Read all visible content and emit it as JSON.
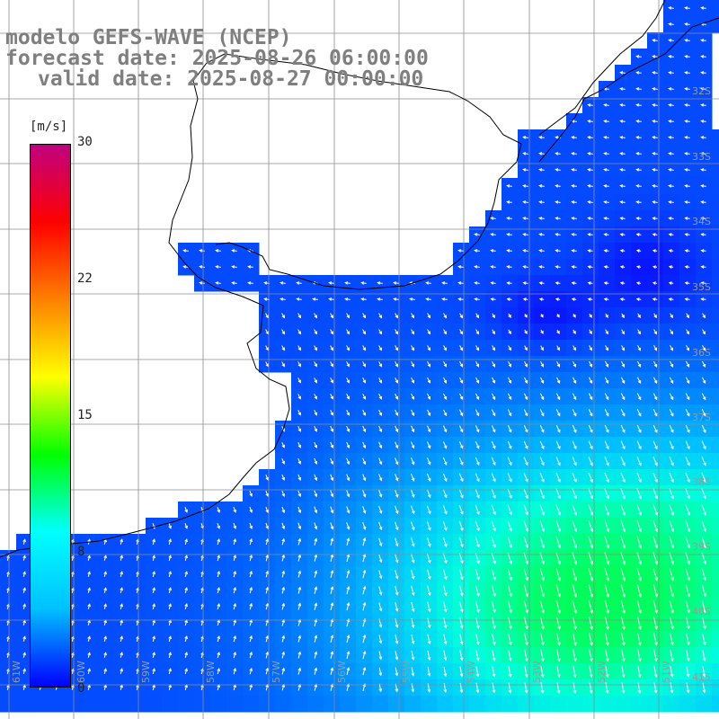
{
  "header": {
    "line1": "modelo GEFS-WAVE (NCEP)",
    "line2": "forecast date: 2025-08-26 06:00:00",
    "line3": "valid date: 2025-08-27 00:00:00"
  },
  "colorbar": {
    "unit": "[m/s]",
    "ticks": [
      "30",
      "22",
      "15",
      "8",
      "0"
    ],
    "tick_values": [
      30,
      22,
      15,
      8,
      0
    ],
    "min": 0,
    "max": 30,
    "colors": [
      "#0000ff",
      "#00c0ff",
      "#00ffff",
      "#00ff00",
      "#ffff00",
      "#ff8000",
      "#ff0000",
      "#c0007f"
    ]
  },
  "grid": {
    "lat_labels": [
      "32S",
      "33S",
      "34S",
      "35S",
      "36S",
      "37S",
      "38S",
      "39S",
      "40S",
      "41S"
    ],
    "lon_labels": [
      "61W",
      "60W",
      "59W",
      "58W",
      "57W",
      "56W",
      "55W",
      "54W",
      "53W",
      "52W",
      "51W"
    ],
    "line_color": "#8c8c8c",
    "land_color": "#ffffff",
    "coast_color": "#000000"
  }
}
